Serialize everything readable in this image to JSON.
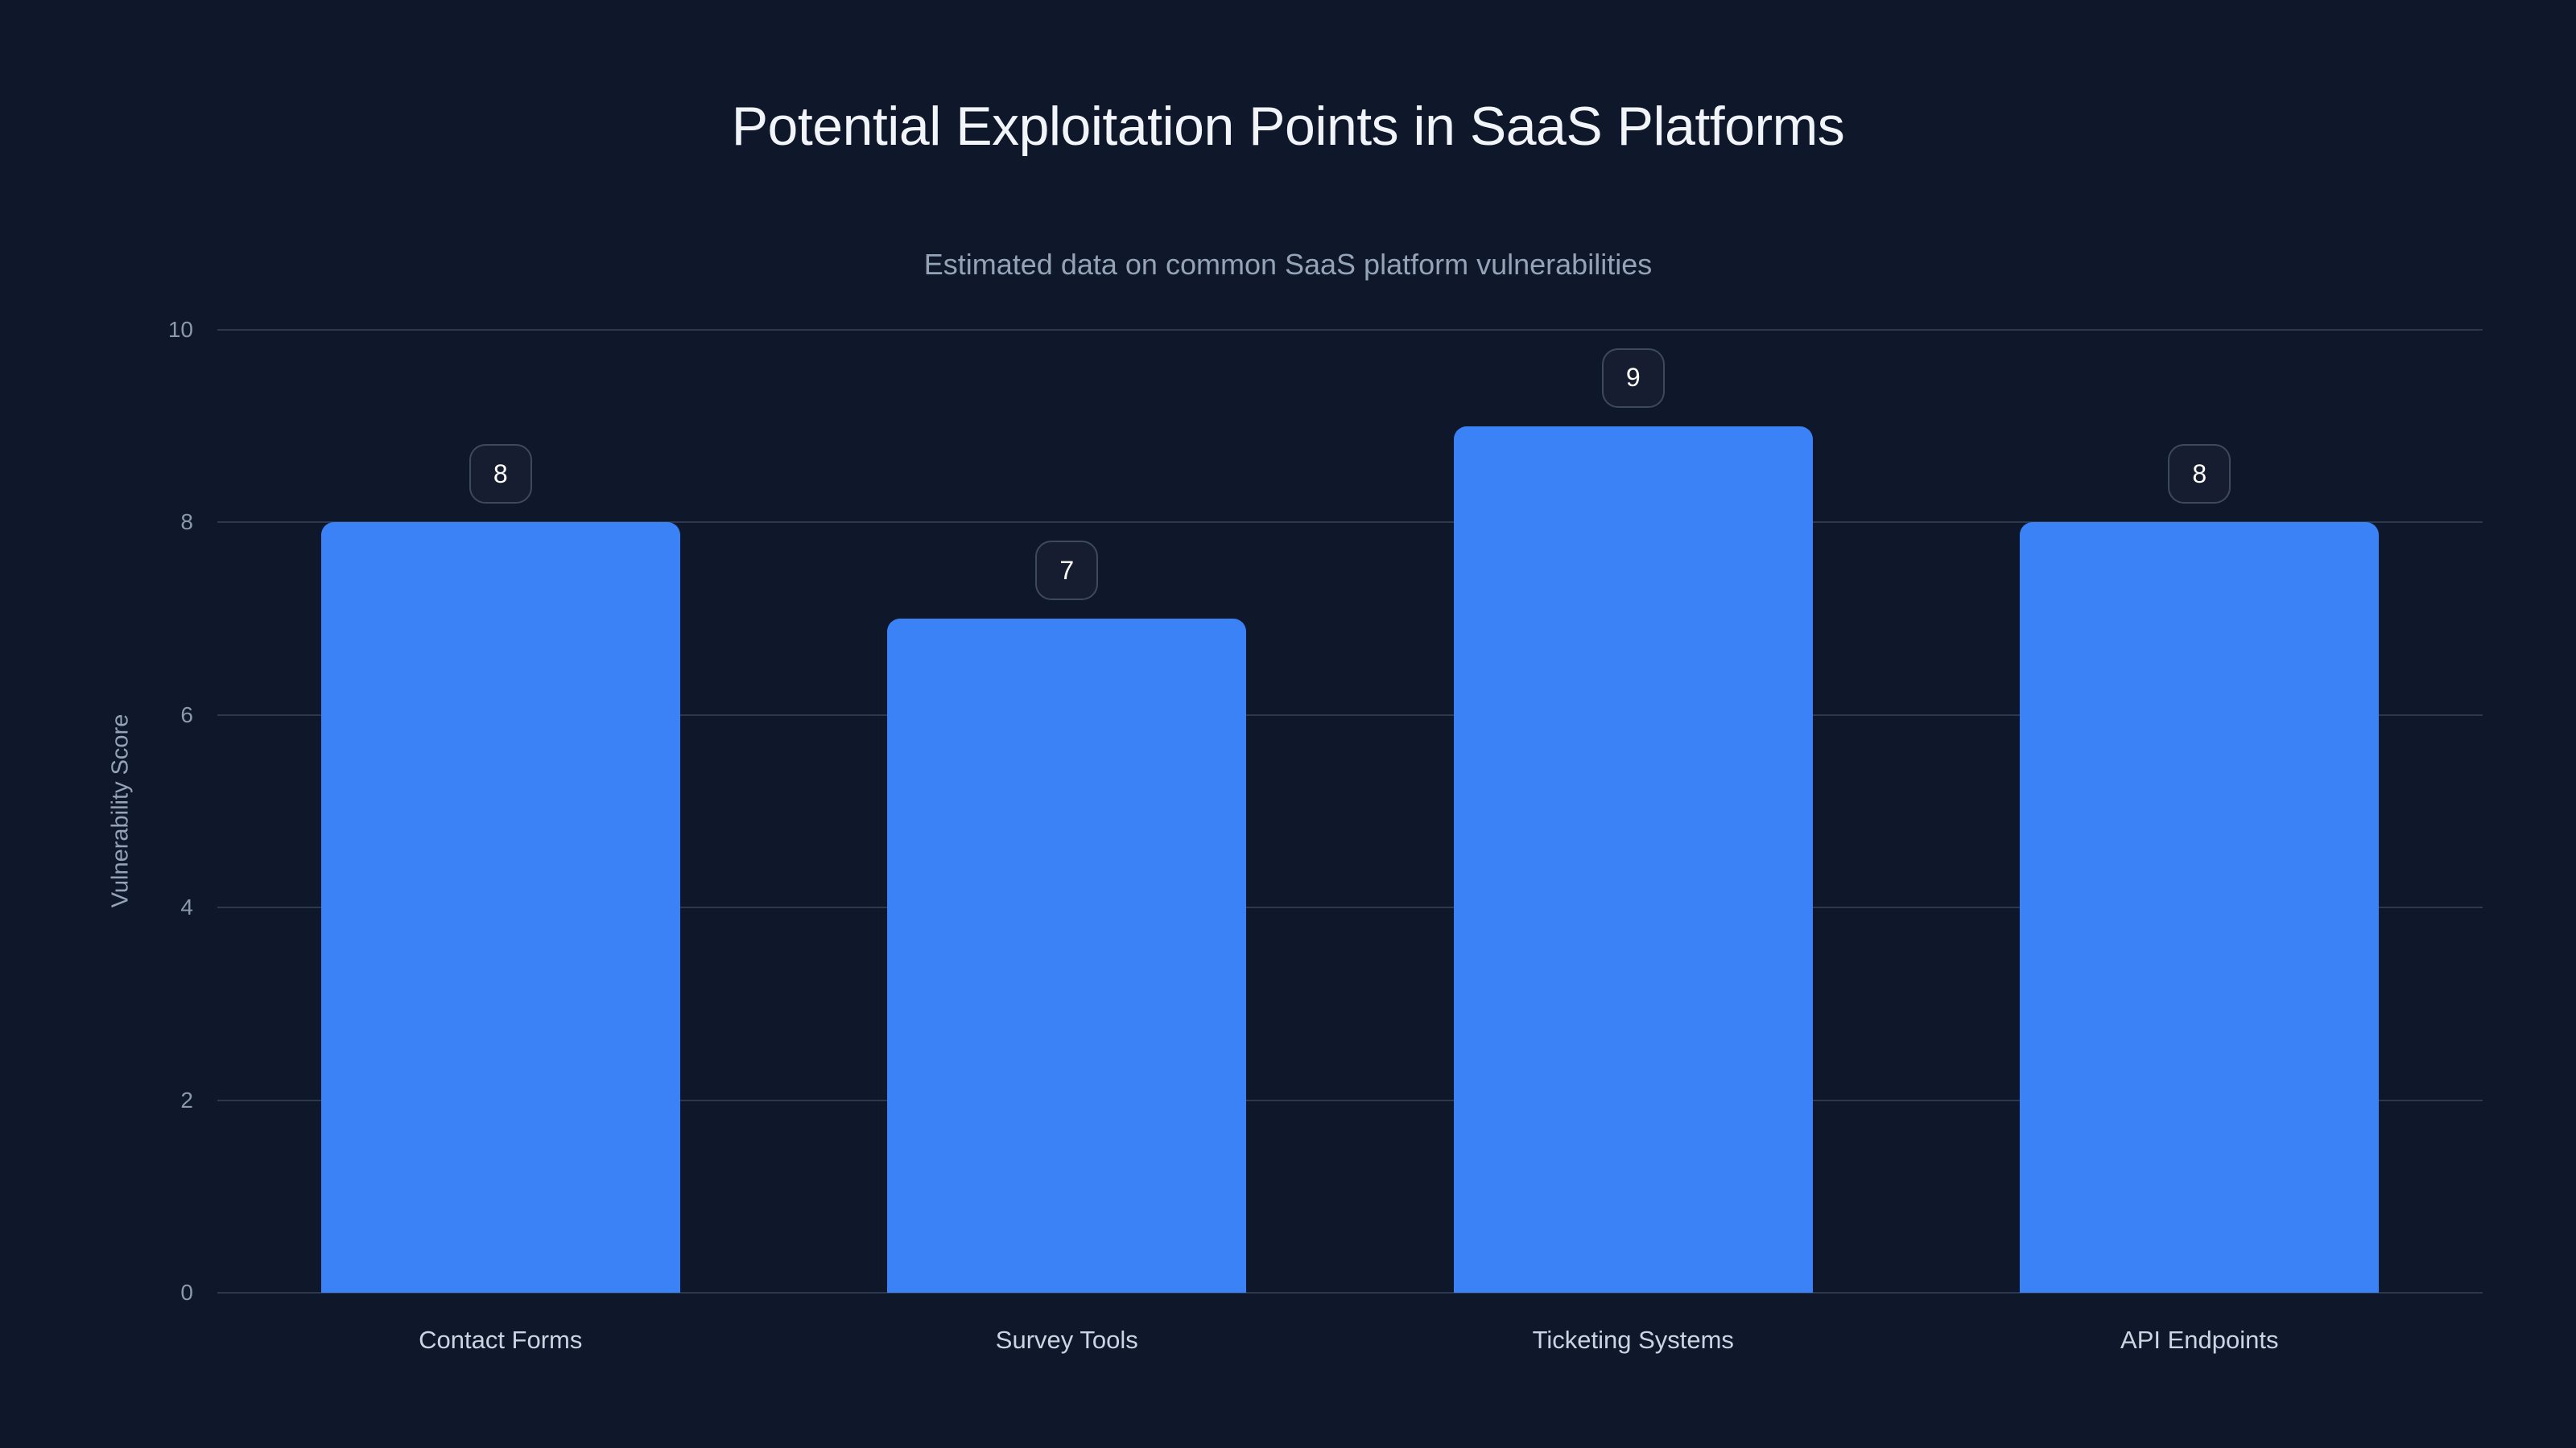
{
  "chart_data": {
    "type": "bar",
    "title": "Potential Exploitation Points in SaaS Platforms",
    "subtitle": "Estimated data on common SaaS platform vulnerabilities",
    "ylabel": "Vulnerability Score",
    "xlabel": "",
    "categories": [
      "Contact Forms",
      "Survey Tools",
      "Ticketing Systems",
      "API Endpoints"
    ],
    "values": [
      8,
      7,
      9,
      8
    ],
    "value_labels_shown": true,
    "ylim": [
      0,
      10
    ],
    "yticks": [
      0,
      2,
      4,
      6,
      8,
      10
    ],
    "grid": "horizontal",
    "legend": "none"
  },
  "theme": {
    "background": "#0f172a",
    "title_color": "#f1f5f9",
    "subtitle_color": "#94a3b8",
    "axis_label_color": "#94a3b8",
    "tick_color": "#8b99ad",
    "xtick_color": "#cbd5e1",
    "grid_color": "#2c3850",
    "bar_color": "#3b82f6",
    "badge_border": "#3d4a5e",
    "badge_text": "#ffffff"
  }
}
